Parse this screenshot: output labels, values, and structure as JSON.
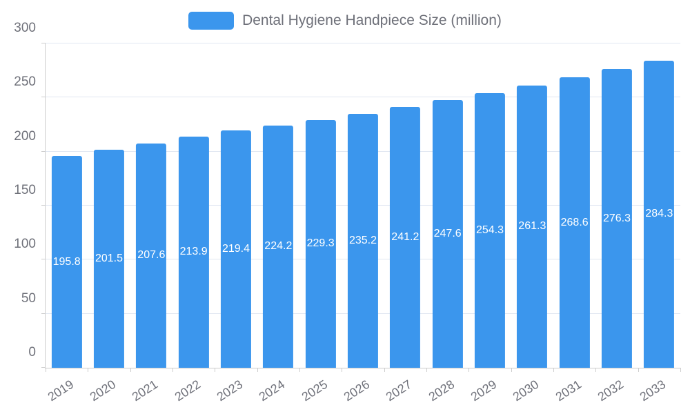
{
  "chart_data": {
    "type": "bar",
    "title": "Dental Hygiene Handpiece Size (million)",
    "categories": [
      "2019",
      "2020",
      "2021",
      "2022",
      "2023",
      "2024",
      "2025",
      "2026",
      "2027",
      "2028",
      "2029",
      "2030",
      "2031",
      "2032",
      "2033"
    ],
    "values": [
      195.8,
      201.5,
      207.6,
      213.9,
      219.4,
      224.2,
      229.3,
      235.2,
      241.2,
      247.6,
      254.3,
      261.3,
      268.6,
      276.3,
      284.3
    ],
    "xlabel": "",
    "ylabel": "",
    "ylim": [
      0,
      300
    ],
    "yticks": [
      0,
      50,
      100,
      150,
      200,
      250,
      300
    ],
    "grid": true,
    "legend_position": "top-center",
    "value_label_decimals": 1,
    "colors": {
      "bar": "#3b96ed",
      "value_label": "#ffffff",
      "axis_text": "#6E7079",
      "gridline": "#E0E6F1",
      "axis_line": "#cccccc",
      "background": "#ffffff"
    }
  }
}
